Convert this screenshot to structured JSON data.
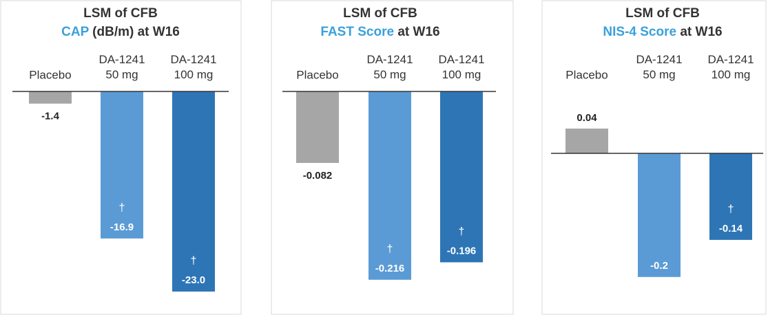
{
  "chart_data": [
    {
      "type": "bar",
      "title": "LSM of CFB",
      "subtitle_highlight": "CAP",
      "subtitle": "(dB/m) at W16",
      "categories": [
        "Placebo",
        "DA-1241\n50 mg",
        "DA-1241\n100 mg"
      ],
      "values": [
        -1.4,
        -16.9,
        -23.0
      ],
      "value_labels": [
        "-1.4",
        "-16.9",
        "-23.0"
      ],
      "annotations": [
        null,
        "†",
        "†"
      ],
      "colors": [
        "#a6a6a6",
        "#5b9bd5",
        "#2e75b6"
      ],
      "ylim": [
        -25.45,
        0
      ]
    },
    {
      "type": "bar",
      "title": "LSM of CFB",
      "subtitle_highlight": "FAST Score",
      "subtitle": "at W16",
      "categories": [
        "Placebo",
        "DA-1241\n50 mg",
        "DA-1241\n100 mg"
      ],
      "values": [
        -0.082,
        -0.216,
        -0.196
      ],
      "annotations": [
        null,
        "†",
        "†"
      ],
      "colors": [
        "#a6a6a6",
        "#5b9bd5",
        "#2e75b6"
      ],
      "ylim": [
        -0.254,
        0
      ]
    },
    {
      "type": "bar",
      "title": "LSM of CFB",
      "subtitle_highlight": "NIS-4 Score",
      "subtitle": "at W16",
      "categories": [
        "Placebo",
        "DA-1241\n50 mg",
        "DA-1241\n100 mg"
      ],
      "values": [
        0.04,
        -0.2,
        -0.14
      ],
      "annotations": [
        null,
        null,
        "†"
      ],
      "colors": [
        "#a6a6a6",
        "#5b9bd5",
        "#2e75b6"
      ],
      "ylim": [
        -0.258,
        0.1
      ]
    }
  ]
}
